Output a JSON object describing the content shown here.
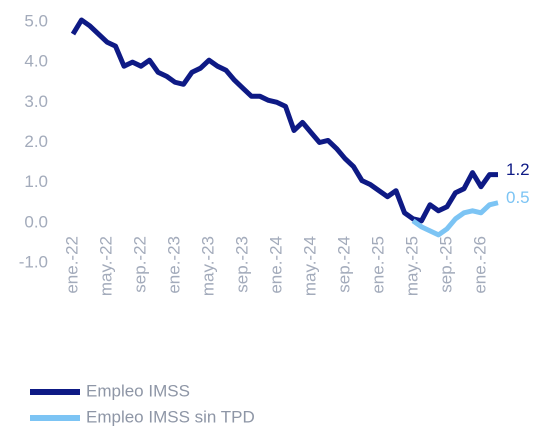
{
  "chart_data": {
    "type": "line",
    "categories": [
      "ene.-22",
      null,
      null,
      null,
      "may.-22",
      null,
      null,
      null,
      "sep.-22",
      null,
      null,
      null,
      "ene.-23",
      null,
      null,
      null,
      "may.-23",
      null,
      null,
      null,
      "sep.-23",
      null,
      null,
      null,
      "ene.-24",
      null,
      null,
      null,
      "may.-24",
      null,
      null,
      null,
      "sep.-24",
      null,
      null,
      null,
      "ene.-25",
      null,
      null,
      null,
      "may.-25",
      null,
      null,
      null,
      "sep.-25",
      null,
      null,
      null,
      "ene.-26",
      null,
      null
    ],
    "series": [
      {
        "name": "Empleo IMSS",
        "color": "#0e1a85",
        "values": [
          4.7,
          5.05,
          4.9,
          4.7,
          4.5,
          4.4,
          3.9,
          4.0,
          3.9,
          4.05,
          3.75,
          3.65,
          3.5,
          3.45,
          3.75,
          3.85,
          4.05,
          3.9,
          3.8,
          3.55,
          3.35,
          3.15,
          3.15,
          3.05,
          3.0,
          2.9,
          2.3,
          2.5,
          2.25,
          2.0,
          2.05,
          1.85,
          1.6,
          1.4,
          1.05,
          0.95,
          0.8,
          0.65,
          0.8,
          0.25,
          0.1,
          0.05,
          0.45,
          0.3,
          0.4,
          0.75,
          0.85,
          1.25,
          0.9,
          1.2,
          1.2
        ],
        "value_labels": [
          null,
          null,
          null,
          null,
          null,
          null,
          null,
          null,
          null,
          null,
          null,
          null,
          null,
          null,
          null,
          null,
          null,
          null,
          null,
          null,
          null,
          null,
          null,
          null,
          null,
          null,
          null,
          null,
          null,
          null,
          null,
          null,
          null,
          null,
          null,
          null,
          null,
          null,
          null,
          null,
          null,
          null,
          null,
          null,
          null,
          null,
          null,
          null,
          null,
          null,
          "1.2"
        ]
      },
      {
        "name": "Empleo IMSS sin TPD",
        "color": "#7cc4f4",
        "values": [
          null,
          null,
          null,
          null,
          null,
          null,
          null,
          null,
          null,
          null,
          null,
          null,
          null,
          null,
          null,
          null,
          null,
          null,
          null,
          null,
          null,
          null,
          null,
          null,
          null,
          null,
          null,
          null,
          null,
          null,
          null,
          null,
          null,
          null,
          null,
          null,
          null,
          null,
          null,
          null,
          0.05,
          -0.1,
          -0.2,
          -0.3,
          -0.15,
          0.1,
          0.25,
          0.3,
          0.25,
          0.45,
          0.5
        ],
        "value_labels": [
          null,
          null,
          null,
          null,
          null,
          null,
          null,
          null,
          null,
          null,
          null,
          null,
          null,
          null,
          null,
          null,
          null,
          null,
          null,
          null,
          null,
          null,
          null,
          null,
          null,
          null,
          null,
          null,
          null,
          null,
          null,
          null,
          null,
          null,
          null,
          null,
          null,
          null,
          null,
          null,
          null,
          null,
          null,
          null,
          null,
          null,
          null,
          null,
          null,
          null,
          "0.5"
        ]
      }
    ],
    "ylim": [
      -1,
      5
    ],
    "yticks": [
      {
        "value": 5,
        "label": "5.0"
      },
      {
        "value": 4,
        "label": "4.0"
      },
      {
        "value": 3,
        "label": "3.0"
      },
      {
        "value": 2,
        "label": "2.0"
      },
      {
        "value": 1,
        "label": "1.0"
      },
      {
        "value": 0,
        "label": "0.0"
      },
      {
        "value": -1,
        "label": "-1.0"
      }
    ],
    "grid": false,
    "legend": "bottom-left"
  }
}
